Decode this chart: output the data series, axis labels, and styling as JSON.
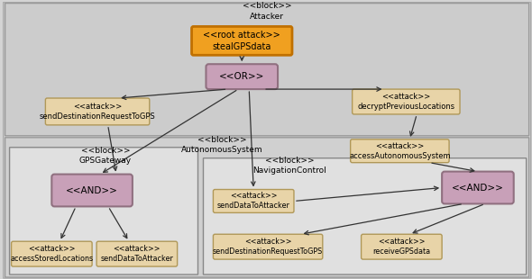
{
  "bg_outer": "#d4d4d4",
  "bg_attacker": "#cccccc",
  "bg_autonomous": "#d0d0d0",
  "bg_sub": "#e0e0e0",
  "color_root_fill": "#f0a020",
  "color_root_edge": "#c07000",
  "color_or_and_fill": "#c8a0b8",
  "color_or_and_edge": "#907080",
  "color_attack_fill": "#e8d4a8",
  "color_attack_edge": "#b09858",
  "label_attacker": "<<block>>\nAttacker",
  "label_root": "<<root attack>>\nstealGPSdata",
  "label_or": "<<OR>>",
  "label_send_dest_top": "<<attack>>\nsendDestinationRequestToGPS",
  "label_decrypt": "<<attack>>\ndecryptPreviousLocations",
  "label_autonomous": "<<block>>\nAutonomousSystem",
  "label_access_auto": "<<attack>>\naccessAutonomousSystem",
  "label_gps_gateway": "<<block>>\nGPSGateway",
  "label_and_gps": "<<AND>>",
  "label_access_stored": "<<attack>>\naccessStoredLocations",
  "label_send_data1": "<<attack>>\nsendDataToAttacker",
  "label_nav_control": "<<block>>\nNavigationControl",
  "label_and_nav": "<<AND>>",
  "label_send_data2": "<<attack>>\nsendDataToAttacker",
  "label_send_dest_bot": "<<attack>>\nsendDestinationRequestToGPS",
  "label_receive_gps": "<<attack>>\nreceiveGPSdata"
}
